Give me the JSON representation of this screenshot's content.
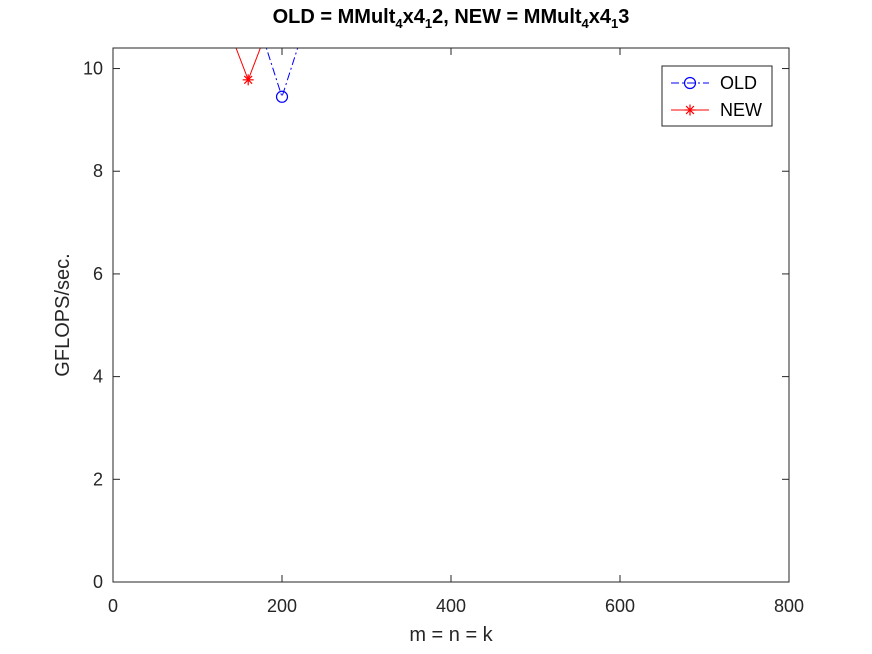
{
  "chart_data": {
    "type": "line",
    "title": {
      "parts": [
        {
          "text": "OLD = MMult",
          "sub": false
        },
        {
          "text": "4",
          "sub": true
        },
        {
          "text": "x4",
          "sub": false
        },
        {
          "text": "1",
          "sub": true
        },
        {
          "text": "2, NEW = MMult",
          "sub": false
        },
        {
          "text": "4",
          "sub": true
        },
        {
          "text": "x4",
          "sub": false
        },
        {
          "text": "1",
          "sub": true
        },
        {
          "text": "3",
          "sub": false
        }
      ]
    },
    "xlabel": "m = n = k",
    "ylabel": "GFLOPS/sec.",
    "xlim": [
      0,
      800
    ],
    "ylim": [
      0,
      10.4
    ],
    "xticks": [
      0,
      200,
      400,
      600,
      800
    ],
    "yticks": [
      0,
      2,
      4,
      6,
      8,
      10
    ],
    "grid": false,
    "legend_position": "top-right",
    "series": [
      {
        "name": "OLD",
        "color": "#0000ff",
        "line_style": "dash-dot",
        "marker": "circle",
        "x": [
          160,
          200,
          240
        ],
        "y": [
          11.5,
          9.45,
          11.5
        ]
      },
      {
        "name": "NEW",
        "color": "#ff0000",
        "line_style": "solid",
        "marker": "asterisk",
        "x": [
          120,
          160,
          200
        ],
        "y": [
          11.5,
          9.78,
          11.5
        ]
      }
    ]
  }
}
